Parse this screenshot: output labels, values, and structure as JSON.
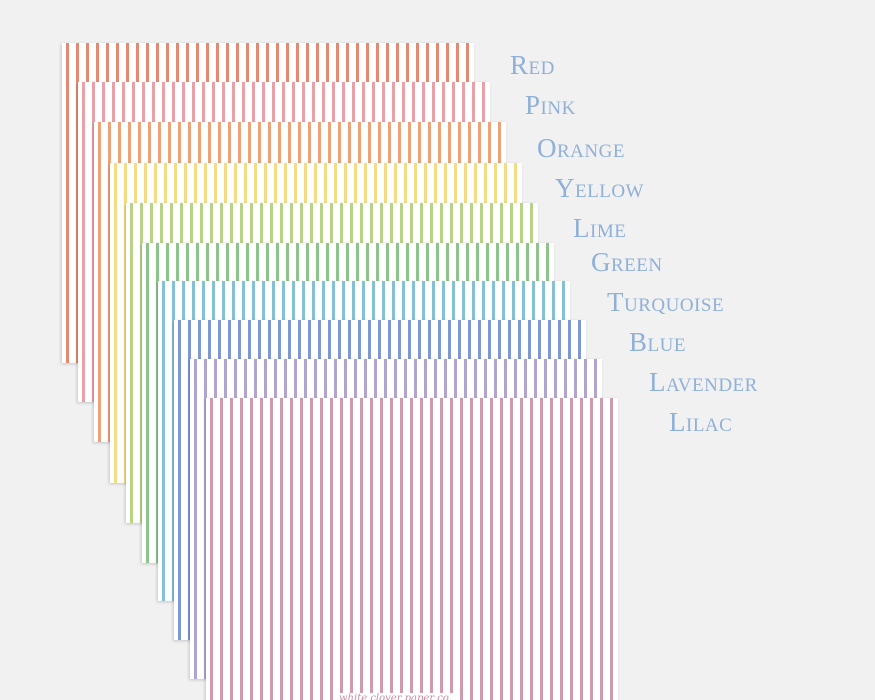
{
  "papers": [
    {
      "name": "Red",
      "color": "#e58a72"
    },
    {
      "name": "Pink",
      "color": "#e9a0a6"
    },
    {
      "name": "Orange",
      "color": "#eea278"
    },
    {
      "name": "Yellow",
      "color": "#f4dc84"
    },
    {
      "name": "Lime",
      "color": "#b7d486"
    },
    {
      "name": "Green",
      "color": "#8cc48c"
    },
    {
      "name": "Turquoise",
      "color": "#84c0d6"
    },
    {
      "name": "Blue",
      "color": "#7f97d2"
    },
    {
      "name": "Lavender",
      "color": "#b1a5cf"
    },
    {
      "name": "Lilac",
      "color": "#cf9aae"
    }
  ],
  "label_color": "#8fb0d9",
  "watermark": "white clover paper co."
}
